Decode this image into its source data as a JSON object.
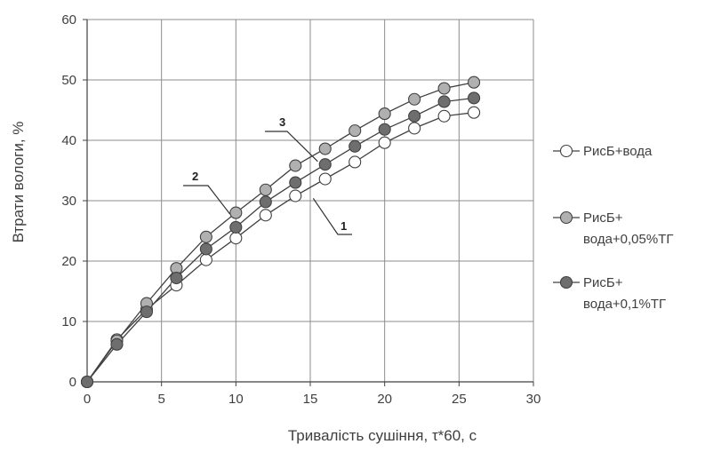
{
  "chart_data": {
    "type": "line",
    "xlabel": "Тривалість сушіння, τ*60, с",
    "ylabel": "Втрати вологи, %",
    "xlim": [
      0,
      30
    ],
    "ylim": [
      0,
      60
    ],
    "xticks": [
      0,
      5,
      10,
      15,
      20,
      25,
      30
    ],
    "yticks": [
      0,
      10,
      20,
      30,
      40,
      50,
      60
    ],
    "grid": true,
    "legend_position": "right",
    "series": [
      {
        "name": "РисБ+вода",
        "marker_fill": "#ffffff",
        "x": [
          0,
          2,
          4,
          6,
          8,
          10,
          12,
          14,
          16,
          18,
          20,
          22,
          24,
          26
        ],
        "y": [
          0,
          7,
          12,
          16,
          20.2,
          23.8,
          27.6,
          30.8,
          33.6,
          36.4,
          39.6,
          42,
          44,
          44.6
        ]
      },
      {
        "name": "РисБ+ вода+0,05%ТГ",
        "marker_fill": "#b0b0b0",
        "x": [
          0,
          2,
          4,
          6,
          8,
          10,
          12,
          14,
          16,
          18,
          20,
          22,
          24,
          26
        ],
        "y": [
          0,
          6.8,
          13,
          18.8,
          24,
          28,
          31.8,
          35.8,
          38.6,
          41.6,
          44.4,
          46.8,
          48.6,
          49.6
        ]
      },
      {
        "name": "РисБ+ вода+0,1%ТГ",
        "marker_fill": "#6e6e6e",
        "x": [
          0,
          2,
          4,
          6,
          8,
          10,
          12,
          14,
          16,
          18,
          20,
          22,
          24,
          26
        ],
        "y": [
          0,
          6.2,
          11.6,
          17.2,
          22,
          25.6,
          29.8,
          33,
          36,
          39,
          41.8,
          44,
          46.4,
          47
        ]
      }
    ],
    "legend": [
      {
        "lines": [
          "РисБ+вода"
        ]
      },
      {
        "lines": [
          "РисБ+",
          "вода+0,05%ТГ"
        ]
      },
      {
        "lines": [
          "РисБ+",
          "вода+0,1%ТГ"
        ]
      }
    ],
    "annotations": [
      {
        "label": "1",
        "points_to_series": 0
      },
      {
        "label": "2",
        "points_to_series": 1
      },
      {
        "label": "3",
        "points_to_series": 2
      }
    ]
  }
}
